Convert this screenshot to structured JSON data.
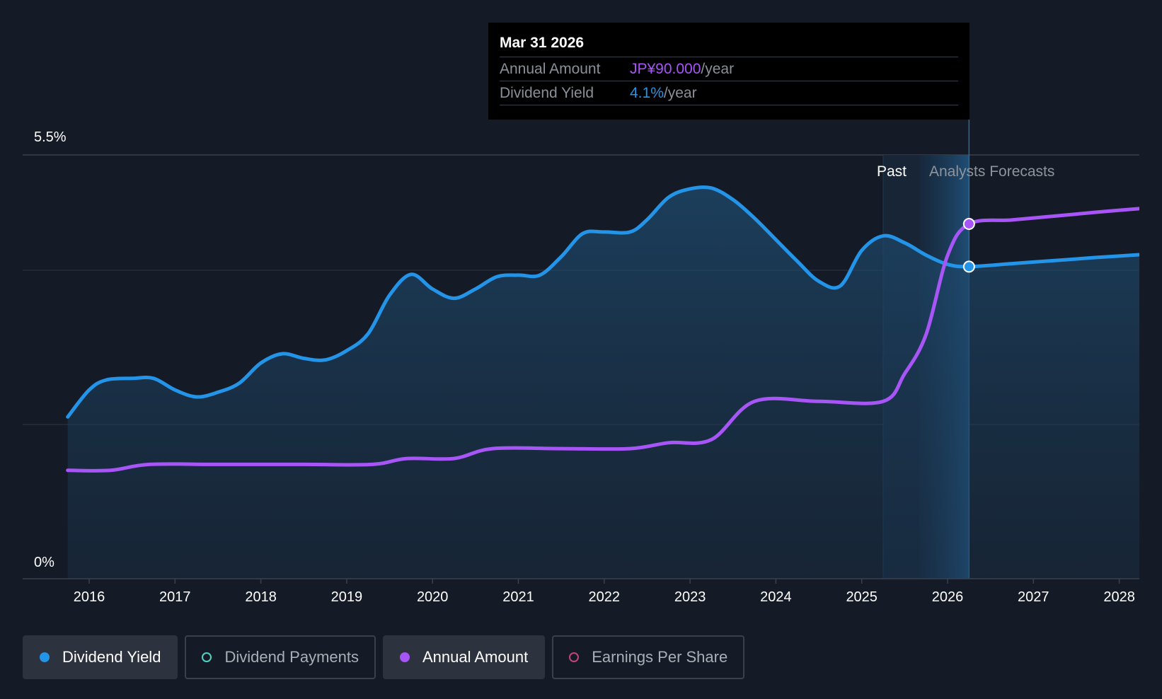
{
  "tooltip": {
    "date": "Mar 31 2026",
    "rows": [
      {
        "label": "Annual Amount",
        "value": "JP¥90.000",
        "unit": "/year",
        "color": "#a855f7"
      },
      {
        "label": "Dividend Yield",
        "value": "4.1%",
        "unit": "/year",
        "color": "#2394e8"
      }
    ]
  },
  "chart_data": {
    "type": "line",
    "y_axis_labels": [
      "5.5%",
      "0%"
    ],
    "ylim": [
      0,
      5.5
    ],
    "xlim": [
      2015.75,
      2028.3
    ],
    "x_ticks": [
      2016,
      2017,
      2018,
      2019,
      2020,
      2021,
      2022,
      2023,
      2024,
      2025,
      2026,
      2027,
      2028
    ],
    "regions": {
      "past_label": "Past",
      "forecast_label": "Analysts Forecasts"
    },
    "highlight_x": 2026.25,
    "series": [
      {
        "name": "Dividend Yield",
        "color": "#2394e8",
        "unit": "%",
        "points": [
          [
            2015.75,
            2.1
          ],
          [
            2016.0,
            2.45
          ],
          [
            2016.2,
            2.58
          ],
          [
            2016.5,
            2.6
          ],
          [
            2016.75,
            2.6
          ],
          [
            2017.0,
            2.45
          ],
          [
            2017.25,
            2.36
          ],
          [
            2017.5,
            2.42
          ],
          [
            2017.75,
            2.54
          ],
          [
            2018.0,
            2.8
          ],
          [
            2018.25,
            2.92
          ],
          [
            2018.5,
            2.86
          ],
          [
            2018.75,
            2.84
          ],
          [
            2019.0,
            2.96
          ],
          [
            2019.25,
            3.18
          ],
          [
            2019.5,
            3.68
          ],
          [
            2019.75,
            3.95
          ],
          [
            2020.0,
            3.76
          ],
          [
            2020.25,
            3.64
          ],
          [
            2020.5,
            3.76
          ],
          [
            2020.75,
            3.92
          ],
          [
            2021.0,
            3.94
          ],
          [
            2021.25,
            3.94
          ],
          [
            2021.5,
            4.18
          ],
          [
            2021.75,
            4.48
          ],
          [
            2022.0,
            4.5
          ],
          [
            2022.3,
            4.5
          ],
          [
            2022.5,
            4.66
          ],
          [
            2022.75,
            4.95
          ],
          [
            2023.0,
            5.06
          ],
          [
            2023.25,
            5.07
          ],
          [
            2023.5,
            4.92
          ],
          [
            2023.75,
            4.68
          ],
          [
            2024.0,
            4.4
          ],
          [
            2024.25,
            4.12
          ],
          [
            2024.5,
            3.86
          ],
          [
            2024.75,
            3.8
          ],
          [
            2025.0,
            4.26
          ],
          [
            2025.25,
            4.45
          ],
          [
            2025.5,
            4.36
          ],
          [
            2025.75,
            4.2
          ],
          [
            2026.0,
            4.08
          ],
          [
            2026.25,
            4.05
          ],
          [
            2026.75,
            4.09
          ],
          [
            2027.25,
            4.13
          ],
          [
            2027.75,
            4.17
          ],
          [
            2028.3,
            4.21
          ]
        ]
      },
      {
        "name": "Annual Amount",
        "color": "#a855f7",
        "unit": "JP¥",
        "points": [
          [
            2015.75,
            27.5
          ],
          [
            2016.25,
            27.5
          ],
          [
            2016.7,
            29
          ],
          [
            2017.5,
            29
          ],
          [
            2018.5,
            29
          ],
          [
            2019.3,
            29
          ],
          [
            2019.7,
            30.5
          ],
          [
            2020.25,
            30.5
          ],
          [
            2020.7,
            33
          ],
          [
            2021.5,
            33
          ],
          [
            2022.3,
            33
          ],
          [
            2022.75,
            34.5
          ],
          [
            2023.25,
            35.3
          ],
          [
            2023.75,
            45
          ],
          [
            2024.5,
            45
          ],
          [
            2025.25,
            45
          ],
          [
            2025.5,
            52
          ],
          [
            2025.75,
            62
          ],
          [
            2026.0,
            82
          ],
          [
            2026.25,
            90
          ],
          [
            2026.75,
            91
          ],
          [
            2027.25,
            92
          ],
          [
            2027.75,
            93
          ],
          [
            2028.3,
            94
          ]
        ],
        "display_scale": {
          "amount_at_bottom": 0,
          "amount_at_top": 107.5
        }
      }
    ],
    "legend": [
      {
        "label": "Dividend Yield",
        "color": "#2394e8",
        "active": true
      },
      {
        "label": "Dividend Payments",
        "color": "#4fd1c5",
        "active": false
      },
      {
        "label": "Annual Amount",
        "color": "#a855f7",
        "active": true
      },
      {
        "label": "Earnings Per Share",
        "color": "#c2447a",
        "active": false
      }
    ]
  }
}
